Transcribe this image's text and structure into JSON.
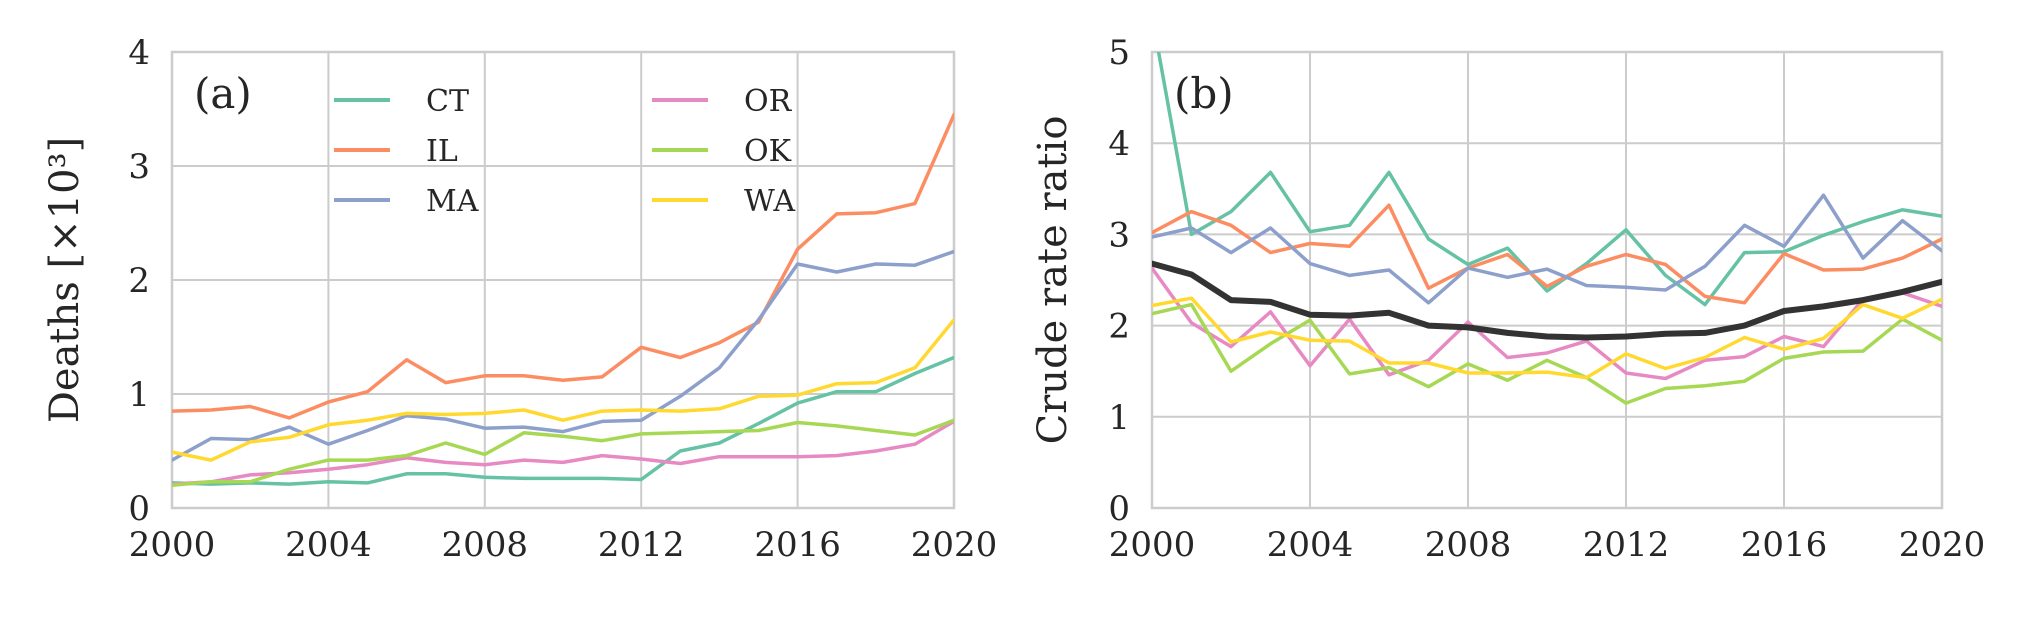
{
  "chart_data": [
    {
      "type": "line",
      "panel_label": "(a)",
      "ylabel": "Deaths [×10³]",
      "xlim": [
        2000,
        2020
      ],
      "ylim": [
        0,
        4
      ],
      "x_ticks": [
        "2000",
        "2004",
        "2008",
        "2012",
        "2016",
        "2020"
      ],
      "y_ticks": [
        "0",
        "1",
        "2",
        "3",
        "4"
      ],
      "grid": true,
      "legend": {
        "placement": "top-left",
        "columns": 2
      },
      "x": [
        2000,
        2001,
        2002,
        2003,
        2004,
        2005,
        2006,
        2007,
        2008,
        2009,
        2010,
        2011,
        2012,
        2013,
        2014,
        2015,
        2016,
        2017,
        2018,
        2019,
        2020
      ],
      "series": [
        {
          "name": "CT",
          "color": "#66c2a5",
          "values": [
            0.22,
            0.21,
            0.22,
            0.21,
            0.23,
            0.22,
            0.3,
            0.3,
            0.27,
            0.26,
            0.26,
            0.26,
            0.25,
            0.5,
            0.57,
            0.74,
            0.92,
            1.02,
            1.02,
            1.18,
            1.32
          ]
        },
        {
          "name": "IL",
          "color": "#fc8d62",
          "values": [
            0.85,
            0.86,
            0.89,
            0.79,
            0.93,
            1.02,
            1.3,
            1.1,
            1.16,
            1.16,
            1.12,
            1.15,
            1.41,
            1.32,
            1.45,
            1.63,
            2.27,
            2.58,
            2.59,
            2.67,
            3.45
          ]
        },
        {
          "name": "MA",
          "color": "#8da0cb",
          "values": [
            0.42,
            0.61,
            0.6,
            0.71,
            0.56,
            0.68,
            0.81,
            0.78,
            0.7,
            0.71,
            0.67,
            0.76,
            0.77,
            0.98,
            1.23,
            1.65,
            2.14,
            2.07,
            2.14,
            2.13,
            2.25
          ]
        },
        {
          "name": "OR",
          "color": "#e78ac3",
          "values": [
            0.21,
            0.23,
            0.29,
            0.31,
            0.34,
            0.38,
            0.44,
            0.4,
            0.38,
            0.42,
            0.4,
            0.46,
            0.43,
            0.39,
            0.45,
            0.45,
            0.45,
            0.46,
            0.5,
            0.56,
            0.76
          ]
        },
        {
          "name": "OK",
          "color": "#a6d854",
          "values": [
            0.2,
            0.23,
            0.23,
            0.34,
            0.42,
            0.42,
            0.46,
            0.57,
            0.47,
            0.66,
            0.63,
            0.59,
            0.65,
            0.66,
            0.67,
            0.68,
            0.75,
            0.72,
            0.68,
            0.64,
            0.77
          ]
        },
        {
          "name": "WA",
          "color": "#ffd92f",
          "values": [
            0.49,
            0.42,
            0.58,
            0.62,
            0.73,
            0.77,
            0.83,
            0.82,
            0.83,
            0.86,
            0.77,
            0.85,
            0.86,
            0.85,
            0.87,
            0.98,
            0.99,
            1.09,
            1.1,
            1.23,
            1.65
          ]
        }
      ]
    },
    {
      "type": "line",
      "panel_label": "(b)",
      "ylabel": "Crude rate ratio",
      "xlim": [
        2000,
        2020
      ],
      "ylim": [
        0,
        5
      ],
      "x_ticks": [
        "2000",
        "2004",
        "2008",
        "2012",
        "2016",
        "2020"
      ],
      "y_ticks": [
        "0",
        "1",
        "2",
        "3",
        "4",
        "5"
      ],
      "grid": true,
      "x": [
        2000,
        2001,
        2002,
        2003,
        2004,
        2005,
        2006,
        2007,
        2008,
        2009,
        2010,
        2011,
        2012,
        2013,
        2014,
        2015,
        2016,
        2017,
        2018,
        2019,
        2020
      ],
      "series": [
        {
          "color": "#66c2a5",
          "values": [
            5.4,
            3.0,
            3.25,
            3.68,
            3.03,
            3.1,
            3.68,
            2.95,
            2.67,
            2.85,
            2.38,
            2.68,
            3.05,
            2.55,
            2.23,
            2.8,
            2.81,
            2.99,
            3.14,
            3.27,
            3.2
          ]
        },
        {
          "color": "#fc8d62",
          "values": [
            3.02,
            3.25,
            3.1,
            2.8,
            2.9,
            2.87,
            3.32,
            2.41,
            2.63,
            2.78,
            2.43,
            2.65,
            2.78,
            2.67,
            2.32,
            2.25,
            2.79,
            2.61,
            2.62,
            2.74,
            2.95
          ]
        },
        {
          "color": "#8da0cb",
          "values": [
            2.97,
            3.07,
            2.8,
            3.07,
            2.68,
            2.55,
            2.61,
            2.25,
            2.63,
            2.53,
            2.62,
            2.44,
            2.42,
            2.39,
            2.65,
            3.1,
            2.87,
            3.43,
            2.74,
            3.15,
            2.82
          ]
        },
        {
          "color": "#e78ac3",
          "values": [
            2.63,
            2.03,
            1.77,
            2.15,
            1.56,
            2.07,
            1.46,
            1.62,
            2.04,
            1.65,
            1.7,
            1.83,
            1.48,
            1.42,
            1.62,
            1.66,
            1.88,
            1.77,
            2.29,
            2.36,
            2.21
          ]
        },
        {
          "color": "#a6d854",
          "values": [
            2.13,
            2.23,
            1.5,
            1.8,
            2.06,
            1.47,
            1.54,
            1.33,
            1.58,
            1.4,
            1.62,
            1.43,
            1.15,
            1.31,
            1.34,
            1.39,
            1.64,
            1.71,
            1.72,
            2.07,
            1.84
          ]
        },
        {
          "color": "#ffd92f",
          "values": [
            2.22,
            2.3,
            1.82,
            1.93,
            1.84,
            1.83,
            1.59,
            1.59,
            1.48,
            1.48,
            1.49,
            1.43,
            1.69,
            1.53,
            1.65,
            1.87,
            1.74,
            1.86,
            2.23,
            2.08,
            2.29
          ]
        },
        {
          "color": "#333333",
          "values": [
            2.68,
            2.56,
            2.28,
            2.26,
            2.12,
            2.11,
            2.14,
            2.0,
            1.98,
            1.92,
            1.88,
            1.87,
            1.88,
            1.91,
            1.92,
            2.0,
            2.16,
            2.21,
            2.28,
            2.37,
            2.48
          ]
        }
      ]
    }
  ]
}
